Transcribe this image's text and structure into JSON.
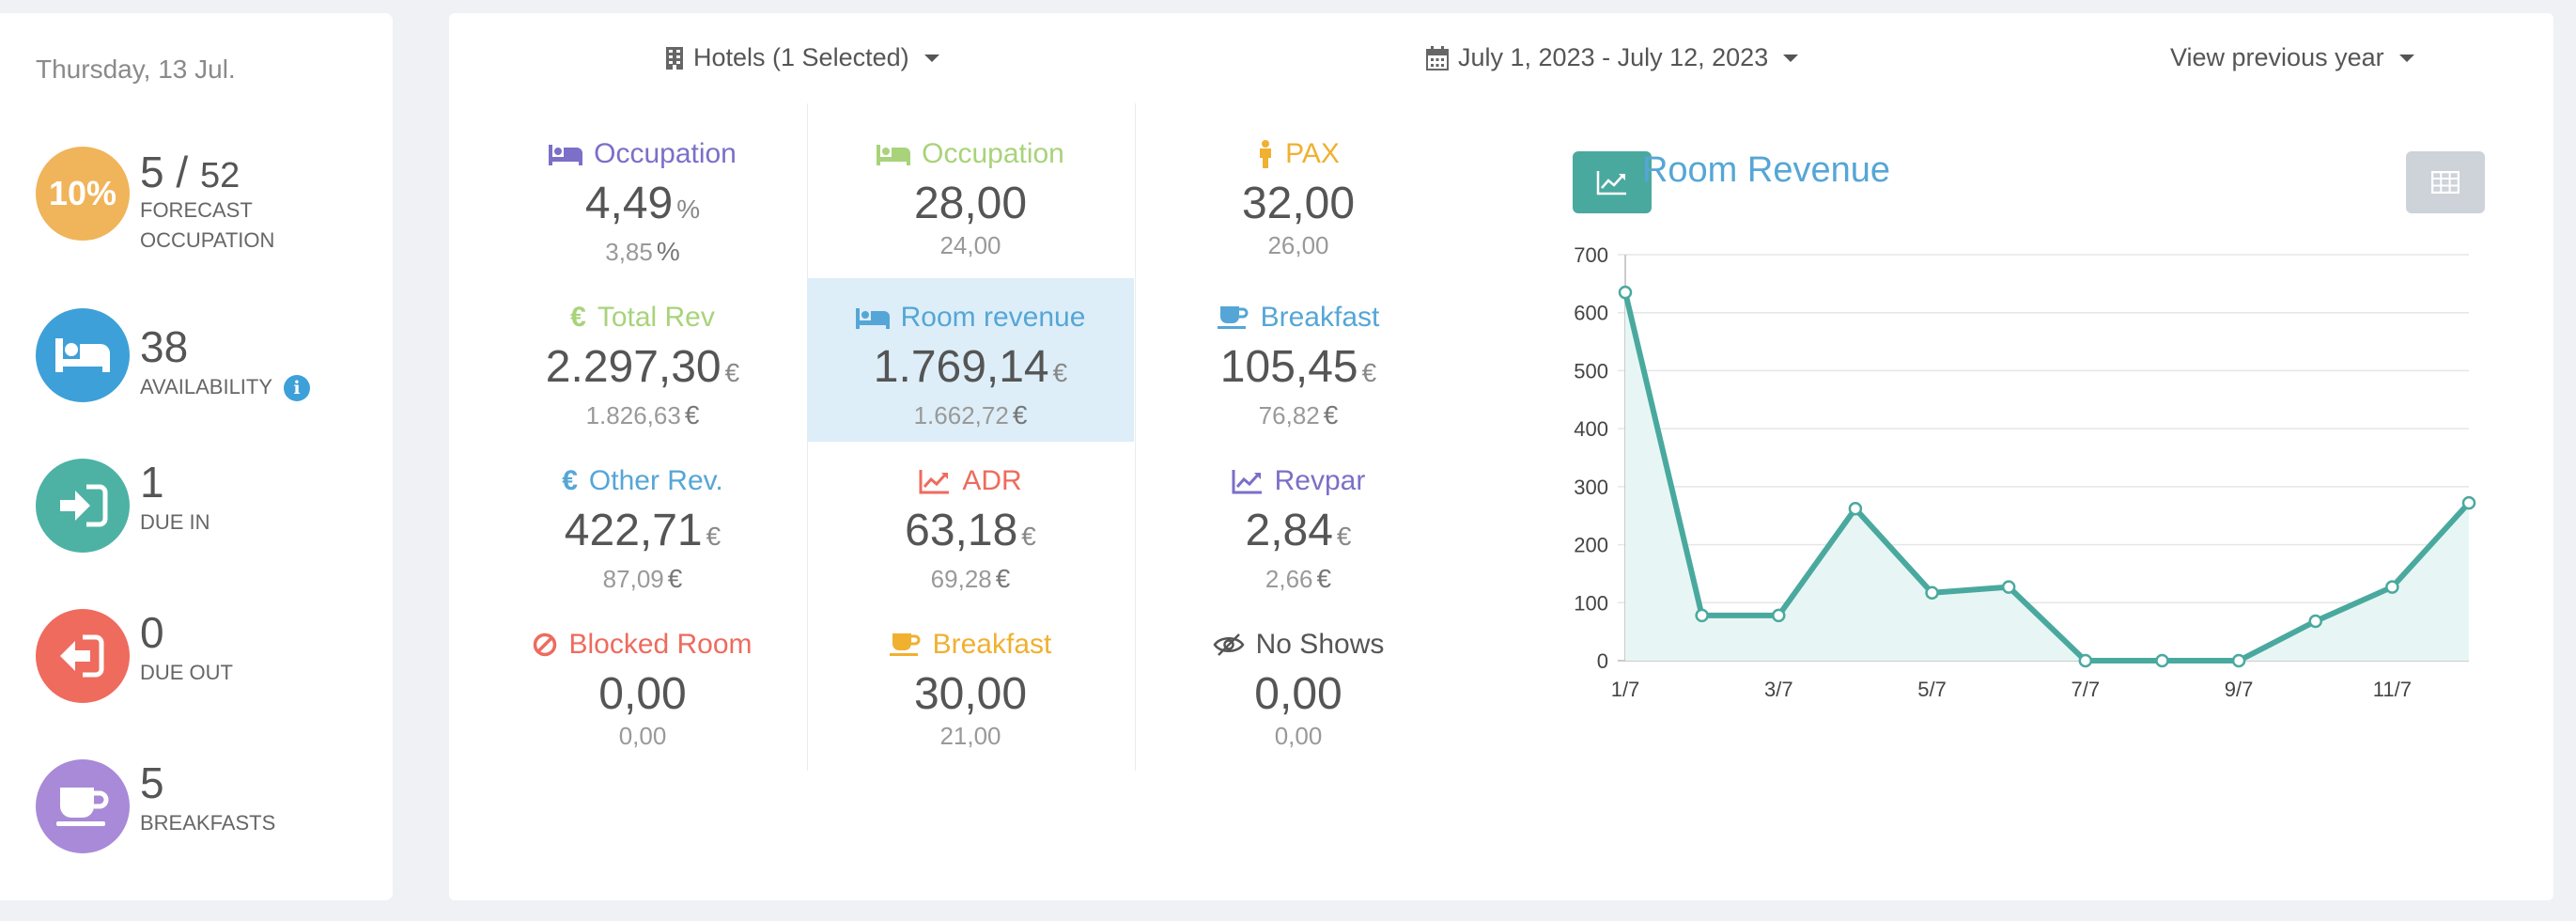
{
  "sidebar": {
    "date": "Thursday, 13 Jul.",
    "occupancy": {
      "percent": "10%",
      "occupied": "5",
      "separator": "/",
      "total": "52",
      "caption_line1": "FORECAST",
      "caption_line2": "OCCUPATION",
      "color": "#f0b45a"
    },
    "availability": {
      "value": "38",
      "caption": "AVAILABILITY",
      "info": "i",
      "color": "#3ea0d8"
    },
    "due_in": {
      "value": "1",
      "caption": "DUE IN",
      "color": "#4db2a4"
    },
    "due_out": {
      "value": "0",
      "caption": "DUE OUT",
      "color": "#ee6b5e"
    },
    "breakfasts": {
      "value": "5",
      "caption": "BREAKFASTS",
      "color": "#a88ad8"
    }
  },
  "filters": {
    "hotels": "Hotels (1 Selected)",
    "date_range": "July 1, 2023 - July 12, 2023",
    "compare": "View previous year"
  },
  "kpis": {
    "occupation_pct": {
      "title": "Occupation",
      "value": "4,49",
      "unit": "%",
      "prev": "3,85",
      "prev_unit": "%",
      "color": "#7b6fc8",
      "icon": "bed-icon"
    },
    "occupation": {
      "title": "Occupation",
      "value": "28,00",
      "prev": "24,00",
      "color": "#a8d37a",
      "icon": "bed-icon"
    },
    "pax": {
      "title": "PAX",
      "value": "32,00",
      "prev": "26,00",
      "color": "#f0b030",
      "icon": "person-icon"
    },
    "total_rev": {
      "title": "Total Rev",
      "value": "2.297,30",
      "unit": "€",
      "prev": "1.826,63",
      "prev_unit": "€",
      "color": "#a8d37a",
      "icon": "euro-icon"
    },
    "room_revenue": {
      "title": "Room revenue",
      "value": "1.769,14",
      "unit": "€",
      "prev": "1.662,72",
      "prev_unit": "€",
      "color": "#55a6d6",
      "icon": "bed-icon"
    },
    "breakfast_rev": {
      "title": "Breakfast",
      "value": "105,45",
      "unit": "€",
      "prev": "76,82",
      "prev_unit": "€",
      "color": "#55a6d6",
      "icon": "coffee-icon"
    },
    "other_rev": {
      "title": "Other Rev.",
      "value": "422,71",
      "unit": "€",
      "prev": "87,09",
      "prev_unit": "€",
      "color": "#55a6d6",
      "icon": "euro-icon"
    },
    "adr": {
      "title": "ADR",
      "value": "63,18",
      "unit": "€",
      "prev": "69,28",
      "prev_unit": "€",
      "color": "#ee6b5e",
      "icon": "trend-icon"
    },
    "revpar": {
      "title": "Revpar",
      "value": "2,84",
      "unit": "€",
      "prev": "2,66",
      "prev_unit": "€",
      "color": "#7b6fc8",
      "icon": "trend-icon"
    },
    "blocked_room": {
      "title": "Blocked Room",
      "value": "0,00",
      "prev": "0,00",
      "color": "#ee6b5e",
      "icon": "ban-icon"
    },
    "breakfast": {
      "title": "Breakfast",
      "value": "30,00",
      "prev": "21,00",
      "color": "#f0b030",
      "icon": "coffee-icon"
    },
    "no_shows": {
      "title": "No Shows",
      "value": "0,00",
      "prev": "0,00",
      "color": "#555555",
      "icon": "eye-slash-icon"
    }
  },
  "chart_data": {
    "type": "area",
    "title": "Room Revenue",
    "x": [
      "1/7",
      "2/7",
      "3/7",
      "4/7",
      "5/7",
      "6/7",
      "7/7",
      "8/7",
      "9/7",
      "10/7",
      "11/7",
      "12/7"
    ],
    "x_tick_labels": [
      "1/7",
      "3/7",
      "5/7",
      "7/7",
      "9/7",
      "11/7"
    ],
    "values": [
      635,
      78,
      78,
      262,
      117,
      127,
      0,
      0,
      0,
      68,
      127,
      272
    ],
    "ylim": [
      0,
      700
    ],
    "y_ticks": [
      "0",
      "100",
      "200",
      "300",
      "400",
      "500",
      "600",
      "700"
    ],
    "grid": true,
    "line_color": "#4aa99e",
    "fill_color": "#e7f6f4"
  }
}
